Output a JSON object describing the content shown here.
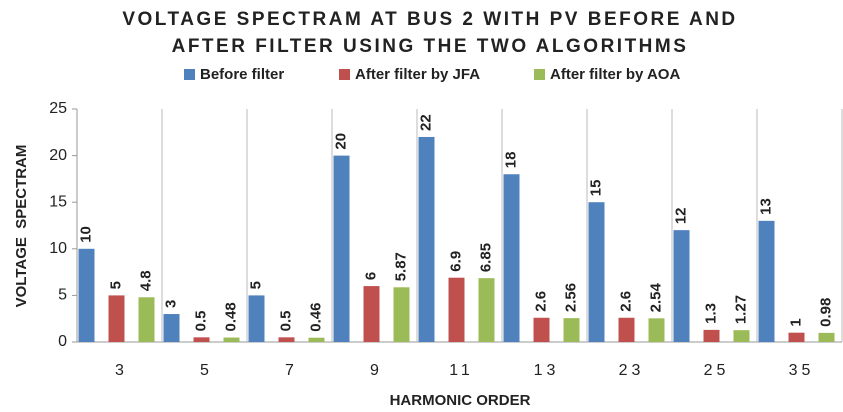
{
  "chart_data": {
    "type": "bar",
    "title": [
      "VOLTAGE SPECTRAM AT BUS 2 WITH PV BEFORE AND",
      "AFTER FILTER USING THE TWO ALGORITHMS"
    ],
    "x_label": "HARMONIC ORDER",
    "y_label": "VOLTAGE  SPECTRAM",
    "categories": [
      "3",
      "5",
      "7",
      "9",
      "11",
      "13",
      "23",
      "25",
      "35"
    ],
    "series": [
      {
        "name": "Before filter",
        "color": "#4f81bd",
        "values": [
          10,
          3,
          5,
          20,
          22,
          18,
          15,
          12,
          13
        ]
      },
      {
        "name": "After filter by JFA",
        "color": "#c0504d",
        "values": [
          5,
          0.5,
          0.5,
          6,
          6.9,
          2.6,
          2.6,
          1.3,
          1
        ]
      },
      {
        "name": "After filter by AOA",
        "color": "#9bbb59",
        "values": [
          4.8,
          0.48,
          0.46,
          5.87,
          6.85,
          2.56,
          2.54,
          1.27,
          0.98
        ]
      }
    ],
    "ylim": [
      0,
      25
    ],
    "yticks": [
      0,
      5,
      10,
      15,
      20,
      25
    ],
    "legend": "top",
    "data_labels": true
  }
}
